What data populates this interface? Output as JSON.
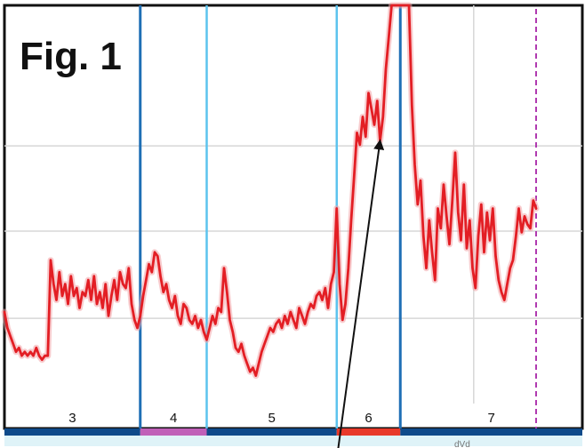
{
  "figure_title": "Fig. 1",
  "bottom_fragment": "dVd",
  "colors": {
    "trace": "#e31e24",
    "trace_light": "#f3a3a5",
    "boundary": "#1f6fb5",
    "boundary_light": "#5cc3ee",
    "marker": "#b03ab0",
    "band_dark": "#0e4a8a",
    "band_pink": "#c060b8",
    "band_red": "#e8392a",
    "grid": "#d7d7d7",
    "frame": "#111111",
    "arrow": "#111111"
  },
  "chart_data": {
    "type": "line",
    "title": "Fig. 1",
    "xlabel": "",
    "ylabel": "",
    "x_range": [
      0,
      100
    ],
    "y_range": [
      0,
      100
    ],
    "grid": true,
    "segments": [
      {
        "label": "3",
        "start": 0,
        "end": 23.5,
        "band_color": "#0e4a8a"
      },
      {
        "label": "4",
        "start": 23.5,
        "end": 35.0,
        "band_color": "#c060b8"
      },
      {
        "label": "5",
        "start": 35.0,
        "end": 57.5,
        "band_color": "#0e4a8a"
      },
      {
        "label": "6",
        "start": 57.5,
        "end": 68.5,
        "band_color": "#e8392a"
      },
      {
        "label": "7",
        "start": 68.5,
        "end": 100,
        "band_color": "#0e4a8a"
      }
    ],
    "boundaries": [
      {
        "x": 23.5,
        "style": "dark"
      },
      {
        "x": 35.0,
        "style": "light"
      },
      {
        "x": 57.5,
        "style": "light"
      },
      {
        "x": 68.5,
        "style": "dark"
      }
    ],
    "dashed_marker_x": 92.0,
    "series": [
      {
        "values": [
          [
            0.0,
            23
          ],
          [
            0.5,
            19
          ],
          [
            1.0,
            17
          ],
          [
            1.5,
            15
          ],
          [
            2.0,
            13
          ],
          [
            2.5,
            14
          ],
          [
            3.0,
            12
          ],
          [
            3.5,
            13
          ],
          [
            4.0,
            12
          ],
          [
            4.5,
            13
          ],
          [
            5.0,
            12
          ],
          [
            5.5,
            14
          ],
          [
            6.0,
            12
          ],
          [
            6.5,
            11
          ],
          [
            7.0,
            12
          ],
          [
            7.5,
            12
          ],
          [
            8.0,
            36
          ],
          [
            8.5,
            30
          ],
          [
            9.0,
            26
          ],
          [
            9.5,
            33
          ],
          [
            10.0,
            27
          ],
          [
            10.5,
            30
          ],
          [
            11.0,
            25
          ],
          [
            11.5,
            32
          ],
          [
            12.0,
            27
          ],
          [
            12.5,
            29
          ],
          [
            13.0,
            24
          ],
          [
            13.5,
            28
          ],
          [
            14.0,
            27
          ],
          [
            14.5,
            31
          ],
          [
            15.0,
            26
          ],
          [
            15.5,
            32
          ],
          [
            16.0,
            25
          ],
          [
            16.5,
            28
          ],
          [
            17.0,
            24
          ],
          [
            17.5,
            30
          ],
          [
            18.0,
            22
          ],
          [
            18.5,
            27
          ],
          [
            19.0,
            31
          ],
          [
            19.5,
            26
          ],
          [
            20.0,
            33
          ],
          [
            20.5,
            30
          ],
          [
            21.0,
            29
          ],
          [
            21.5,
            34
          ],
          [
            22.0,
            25
          ],
          [
            22.5,
            21
          ],
          [
            23.0,
            19
          ],
          [
            23.5,
            22
          ],
          [
            24.0,
            27
          ],
          [
            24.5,
            31
          ],
          [
            25.0,
            35
          ],
          [
            25.5,
            33
          ],
          [
            26.0,
            38
          ],
          [
            26.5,
            37
          ],
          [
            27.0,
            32
          ],
          [
            27.5,
            28
          ],
          [
            28.0,
            30
          ],
          [
            28.5,
            26
          ],
          [
            29.0,
            24
          ],
          [
            29.5,
            27
          ],
          [
            30.0,
            22
          ],
          [
            30.5,
            20
          ],
          [
            31.0,
            25
          ],
          [
            31.5,
            24
          ],
          [
            32.0,
            21
          ],
          [
            32.5,
            20
          ],
          [
            33.0,
            22
          ],
          [
            33.5,
            19
          ],
          [
            34.0,
            21
          ],
          [
            34.5,
            18
          ],
          [
            35.0,
            16
          ],
          [
            35.5,
            19
          ],
          [
            36.0,
            22
          ],
          [
            36.5,
            20
          ],
          [
            37.0,
            24
          ],
          [
            37.5,
            23
          ],
          [
            38.0,
            34
          ],
          [
            38.5,
            28
          ],
          [
            39.0,
            21
          ],
          [
            39.5,
            18
          ],
          [
            40.0,
            14
          ],
          [
            40.5,
            13
          ],
          [
            41.0,
            15
          ],
          [
            41.5,
            12
          ],
          [
            42.0,
            10
          ],
          [
            42.5,
            8
          ],
          [
            43.0,
            9
          ],
          [
            43.5,
            7
          ],
          [
            44.0,
            10
          ],
          [
            44.5,
            13
          ],
          [
            45.0,
            15
          ],
          [
            45.5,
            17
          ],
          [
            46.0,
            19
          ],
          [
            46.5,
            18
          ],
          [
            47.0,
            20
          ],
          [
            47.5,
            21
          ],
          [
            48.0,
            19
          ],
          [
            48.5,
            22
          ],
          [
            49.0,
            20
          ],
          [
            49.5,
            23
          ],
          [
            50.0,
            21
          ],
          [
            50.5,
            19
          ],
          [
            51.0,
            24
          ],
          [
            51.5,
            22
          ],
          [
            52.0,
            20
          ],
          [
            52.5,
            23
          ],
          [
            53.0,
            25
          ],
          [
            53.5,
            24
          ],
          [
            54.0,
            27
          ],
          [
            54.5,
            28
          ],
          [
            55.0,
            26
          ],
          [
            55.5,
            29
          ],
          [
            56.0,
            24
          ],
          [
            56.5,
            30
          ],
          [
            57.0,
            33
          ],
          [
            57.5,
            49
          ],
          [
            58.0,
            30
          ],
          [
            58.5,
            21
          ],
          [
            59.0,
            25
          ],
          [
            59.5,
            34
          ],
          [
            60.0,
            46
          ],
          [
            60.5,
            57
          ],
          [
            61.0,
            68
          ],
          [
            61.5,
            65
          ],
          [
            62.0,
            72
          ],
          [
            62.5,
            67
          ],
          [
            63.0,
            78
          ],
          [
            63.5,
            74
          ],
          [
            64.0,
            70
          ],
          [
            64.5,
            76
          ],
          [
            65.0,
            66
          ],
          [
            65.5,
            72
          ],
          [
            66.0,
            84
          ],
          [
            66.5,
            92
          ],
          [
            67.0,
            100
          ],
          [
            68.0,
            100
          ],
          [
            70.0,
            100
          ],
          [
            70.5,
            75
          ],
          [
            71.0,
            60
          ],
          [
            71.5,
            50
          ],
          [
            72.0,
            56
          ],
          [
            72.5,
            42
          ],
          [
            73.0,
            34
          ],
          [
            73.5,
            46
          ],
          [
            74.0,
            38
          ],
          [
            74.5,
            31
          ],
          [
            75.0,
            49
          ],
          [
            75.5,
            44
          ],
          [
            76.0,
            55
          ],
          [
            76.5,
            47
          ],
          [
            77.0,
            40
          ],
          [
            77.5,
            51
          ],
          [
            78.0,
            63
          ],
          [
            78.5,
            48
          ],
          [
            79.0,
            41
          ],
          [
            79.5,
            55
          ],
          [
            80.0,
            39
          ],
          [
            80.5,
            46
          ],
          [
            81.0,
            34
          ],
          [
            81.5,
            29
          ],
          [
            82.0,
            42
          ],
          [
            82.5,
            50
          ],
          [
            83.0,
            38
          ],
          [
            83.5,
            48
          ],
          [
            84.0,
            41
          ],
          [
            84.5,
            49
          ],
          [
            85.0,
            37
          ],
          [
            85.5,
            31
          ],
          [
            86.0,
            28
          ],
          [
            86.5,
            26
          ],
          [
            87.0,
            30
          ],
          [
            87.5,
            34
          ],
          [
            88.0,
            36
          ],
          [
            88.5,
            42
          ],
          [
            89.0,
            49
          ],
          [
            89.5,
            43
          ],
          [
            90.0,
            47
          ],
          [
            90.5,
            45
          ],
          [
            91.0,
            44
          ],
          [
            91.5,
            51
          ],
          [
            92.0,
            49
          ]
        ]
      }
    ],
    "annotation": {
      "type": "arrow",
      "from": [
        57.5,
        -14
      ],
      "to": [
        65.0,
        66
      ]
    }
  }
}
